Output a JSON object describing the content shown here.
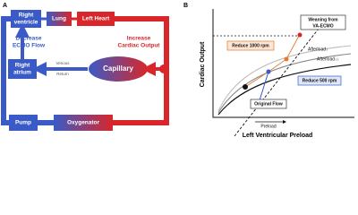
{
  "panel_a": {
    "label": "A",
    "right_ventricle": [
      "Right",
      "ventricle"
    ],
    "lung": "Lung",
    "left_heart": "Left Heart",
    "decrease": [
      "Decrease",
      "ECMO Flow"
    ],
    "increase": [
      "Increase",
      "Cardiac Output"
    ],
    "right_atrium": [
      "Right",
      "atrium"
    ],
    "venous_return": [
      "Venous",
      "Return"
    ],
    "capillary": "Capillary",
    "pump": "Pump",
    "oxygenator": "Oxygenator"
  },
  "panel_b": {
    "label": "B",
    "y_axis_label": "Cardiac Output",
    "x_axis_label": "Left Ventricular Preload",
    "weaning": [
      "Weaning from",
      "VA-ECMO"
    ],
    "reduce_1000": "Reduce 1000 rpm",
    "afterload_1": "Afterload↓",
    "afterload_2": "Afterload↓↓",
    "reduce_500": "Reduce 500 rpm",
    "original_flow": "Original Flow",
    "preload": "Preload"
  }
}
